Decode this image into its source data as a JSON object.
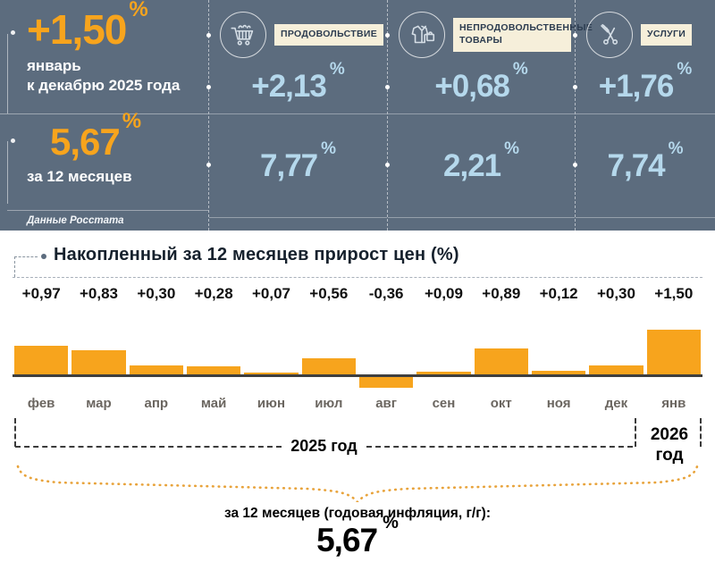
{
  "header": {
    "source": "Данные Росстата",
    "left": {
      "monthly_value": "+1,50",
      "monthly_pct": "%",
      "monthly_caption": [
        "январь",
        "к декабрю 2025 года"
      ],
      "annual_value": "5,67",
      "annual_pct": "%",
      "annual_caption": "за 12 месяцев"
    },
    "categories": [
      {
        "label": "ПРОДОВОЛЬСТВИЕ",
        "icon": "shopping-cart-icon",
        "monthly": "+2,13",
        "annual": "7,77",
        "pct": "%"
      },
      {
        "label": "НЕПРОДОВОЛЬСТВЕННЫЕ ТОВАРЫ",
        "icon": "clothing-icon",
        "monthly": "+0,68",
        "annual": "2,21",
        "pct": "%"
      },
      {
        "label": "УСЛУГИ",
        "icon": "scissors-icon",
        "monthly": "+1,76",
        "annual": "7,74",
        "pct": "%"
      }
    ]
  },
  "chart_data": {
    "type": "bar",
    "title": "Накопленный за 12 месяцев прирост цен (%)",
    "categories": [
      "фев",
      "мар",
      "апр",
      "май",
      "июн",
      "июл",
      "авг",
      "сен",
      "окт",
      "ноя",
      "дек",
      "янв"
    ],
    "values": [
      0.97,
      0.83,
      0.3,
      0.28,
      0.07,
      0.56,
      -0.36,
      0.09,
      0.89,
      0.12,
      0.3,
      1.5
    ],
    "value_labels": [
      "+0,97",
      "+0,83",
      "+0,30",
      "+0,28",
      "+0,07",
      "+0,56",
      "-0,36",
      "+0,09",
      "+0,89",
      "+0,12",
      "+0,30",
      "+1,50"
    ],
    "bar_color": "#F7A41D",
    "ylim": [
      -0.5,
      1.6
    ],
    "grid": false,
    "legend": false,
    "x_groups": [
      {
        "label": "2025 год",
        "from": "фев",
        "to": "дек",
        "lines": [
          "2025 год"
        ]
      },
      {
        "label": "2026 год",
        "from": "янв",
        "to": "янв",
        "lines": [
          "2026",
          "год"
        ]
      }
    ],
    "footer": {
      "caption": "за 12 месяцев (годовая инфляция, г/г):",
      "value": "5,67",
      "pct": "%"
    }
  },
  "colors": {
    "header_bg": "#5C6C7E",
    "accent_orange": "#F7A41D",
    "value_blue": "#B5D8EC",
    "label_box_bg": "#F6EFDA",
    "label_box_text": "#2C3C50",
    "bar_orange": "#F7A41D",
    "brace_orange": "#E8A33B"
  }
}
